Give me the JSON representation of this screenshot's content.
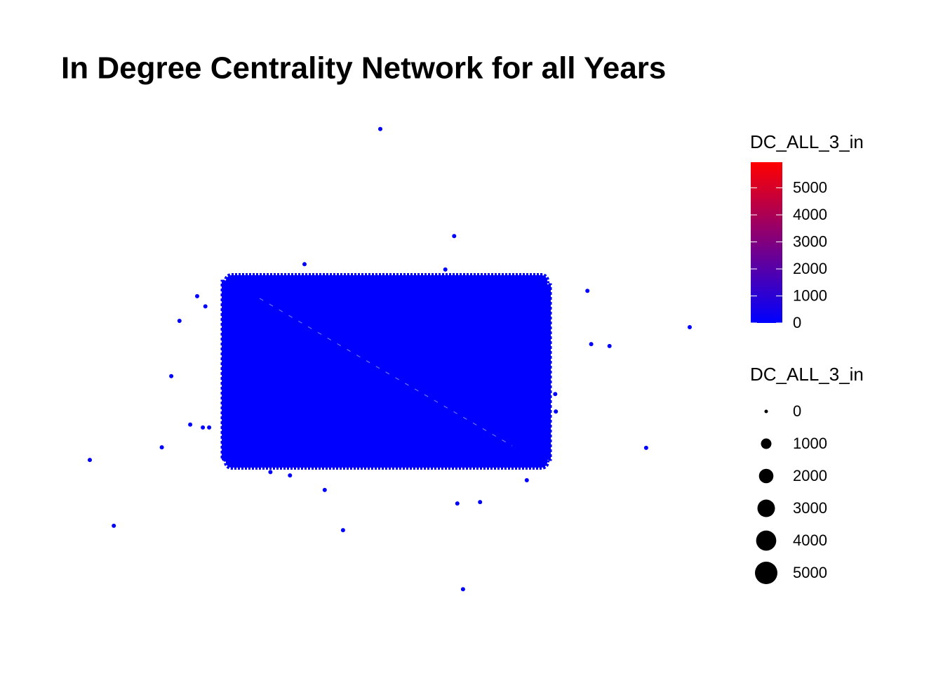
{
  "chart_data": {
    "type": "scatter",
    "title": "In Degree Centrality Network for all Years",
    "x": [
      48.0,
      59.7,
      36.0,
      58.3,
      80.8,
      97.0,
      16.2,
      19.0,
      20.3,
      81.4,
      84.3,
      14.9,
      17.9,
      13.4,
      2.0,
      5.8,
      90.1,
      39.2,
      42.1,
      60.2,
      63.8,
      61.1,
      75.7,
      75.8,
      33.7,
      30.6,
      71.2,
      19.9,
      20.9
    ],
    "y": [
      98.0,
      75.9,
      70.1,
      69.0,
      64.6,
      57.1,
      58.4,
      63.5,
      61.4,
      53.6,
      53.2,
      47.0,
      37.0,
      32.3,
      29.7,
      16.1,
      32.2,
      23.5,
      15.2,
      20.7,
      21.0,
      3.0,
      43.3,
      39.7,
      26.5,
      27.2,
      25.5,
      36.4,
      36.4
    ],
    "xlim": [
      0,
      100
    ],
    "ylim": [
      0,
      100
    ],
    "color": "#0000ff",
    "color_legend": {
      "title": "DC_ALL_3_in",
      "limits": [
        0,
        5950
      ],
      "colors": [
        "#0000ff",
        "#ff0000"
      ],
      "ticks": [
        0,
        1000,
        2000,
        3000,
        4000,
        5000
      ]
    },
    "size_legend": {
      "title": "DC_ALL_3_in",
      "ticks": [
        0,
        1000,
        2000,
        3000,
        4000,
        5000
      ]
    }
  }
}
